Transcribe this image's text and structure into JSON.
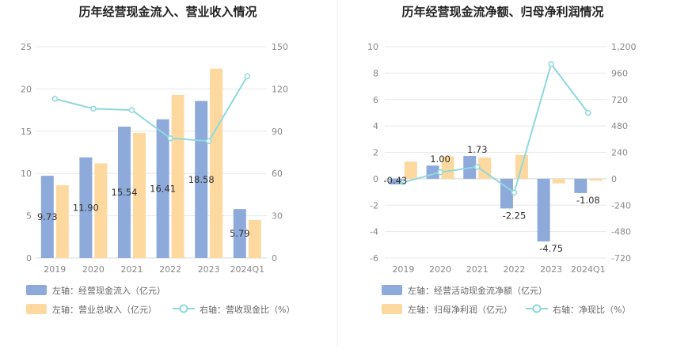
{
  "chart_data": [
    {
      "type": "bar",
      "title": "历年经营现金流入、营业收入情况",
      "categories": [
        "2019",
        "2020",
        "2021",
        "2022",
        "2023",
        "2024Q1"
      ],
      "left_axis": {
        "ylim": [
          0,
          25
        ],
        "ticks": [
          "0",
          "5",
          "10",
          "15",
          "20",
          "25"
        ]
      },
      "right_axis": {
        "ylim": [
          0,
          150
        ],
        "ticks": [
          "0",
          "30",
          "60",
          "90",
          "120",
          "150"
        ]
      },
      "series": [
        {
          "name": "左轴：经营现金流入（亿元）",
          "kind": "bar",
          "axis": "left",
          "color": "#8eaadb",
          "values": [
            9.73,
            11.9,
            15.54,
            16.41,
            18.58,
            5.79
          ],
          "labels": [
            "9.73",
            "11.90",
            "15.54",
            "16.41",
            "18.58",
            "5.79"
          ]
        },
        {
          "name": "左轴：营业总收入（亿元）",
          "kind": "bar",
          "axis": "left",
          "color": "#fdd9a0",
          "values": [
            8.6,
            11.2,
            14.8,
            19.3,
            22.4,
            4.5
          ]
        },
        {
          "name": "右轴：营收现金比（%）",
          "kind": "line",
          "axis": "right",
          "color": "#8fd8dc",
          "values": [
            113,
            106,
            105,
            85,
            83,
            129
          ]
        }
      ]
    },
    {
      "type": "bar",
      "title": "历年经营现金流净额、归母净利润情况",
      "categories": [
        "2019",
        "2020",
        "2021",
        "2022",
        "2023",
        "2024Q1"
      ],
      "left_axis": {
        "ylim": [
          -6,
          10
        ],
        "ticks": [
          "-6",
          "-4",
          "-2",
          "0",
          "2",
          "4",
          "6",
          "8",
          "10"
        ]
      },
      "right_axis": {
        "ylim": [
          -720,
          1200
        ],
        "ticks": [
          "-720",
          "-480",
          "-240",
          "0",
          "240",
          "480",
          "720",
          "960",
          "1,200"
        ]
      },
      "series": [
        {
          "name": "左轴：经营活动现金流净额（亿元）",
          "kind": "bar",
          "axis": "left",
          "color": "#8eaadb",
          "values": [
            -0.43,
            1.0,
            1.73,
            -2.25,
            -4.75,
            -1.08
          ],
          "labels": [
            "-0.43",
            "1.00",
            "1.73",
            "-2.25",
            "-4.75",
            "-1.08"
          ]
        },
        {
          "name": "左轴：归母净利润（亿元）",
          "kind": "bar",
          "axis": "left",
          "color": "#fdd9a0",
          "values": [
            1.3,
            1.7,
            1.6,
            1.8,
            -0.35,
            -0.15
          ]
        },
        {
          "name": "右轴：净现比（%）",
          "kind": "line",
          "axis": "right",
          "color": "#8fd8dc",
          "values": [
            -33,
            59,
            108,
            -125,
            1042,
            598
          ]
        }
      ]
    }
  ]
}
